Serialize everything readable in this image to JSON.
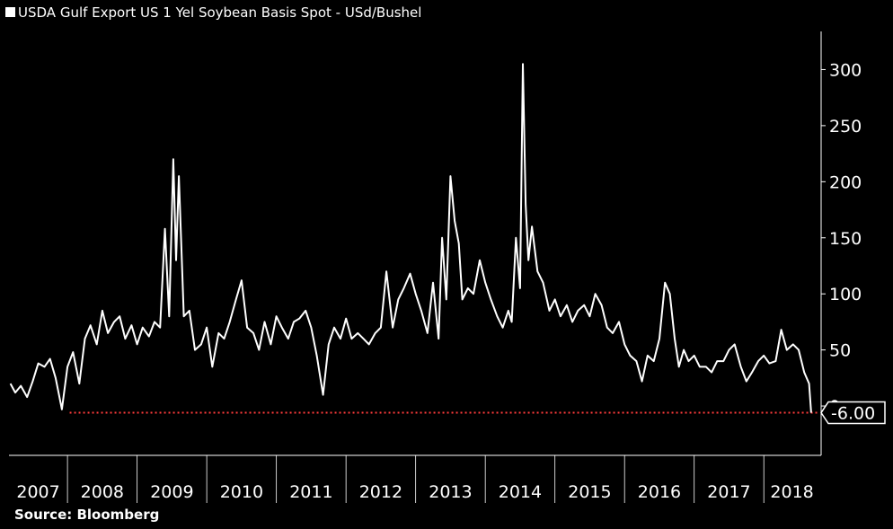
{
  "chart_data": {
    "type": "line",
    "title": "USDA Gulf Export US 1 Yel Soybean Basis Spot - USd/Bushel",
    "source": "Source: Bloomberg",
    "series": [
      {
        "name": "USDA Gulf Export US 1 Yel Soybean Basis Spot - USd/Bushel",
        "color": "#ffffff",
        "x": [
          2007.18,
          2007.25,
          2007.33,
          2007.42,
          2007.5,
          2007.58,
          2007.67,
          2007.75,
          2007.83,
          2007.92,
          2008.0,
          2008.08,
          2008.17,
          2008.25,
          2008.33,
          2008.42,
          2008.5,
          2008.58,
          2008.67,
          2008.75,
          2008.83,
          2008.92,
          2009.0,
          2009.08,
          2009.17,
          2009.25,
          2009.33,
          2009.4,
          2009.46,
          2009.52,
          2009.56,
          2009.6,
          2009.67,
          2009.75,
          2009.83,
          2009.92,
          2010.0,
          2010.08,
          2010.17,
          2010.25,
          2010.33,
          2010.42,
          2010.5,
          2010.58,
          2010.67,
          2010.75,
          2010.83,
          2010.92,
          2011.0,
          2011.08,
          2011.17,
          2011.25,
          2011.33,
          2011.42,
          2011.5,
          2011.58,
          2011.67,
          2011.75,
          2011.83,
          2011.92,
          2012.0,
          2012.08,
          2012.17,
          2012.25,
          2012.33,
          2012.42,
          2012.5,
          2012.58,
          2012.67,
          2012.75,
          2012.83,
          2012.92,
          2013.0,
          2013.08,
          2013.17,
          2013.25,
          2013.33,
          2013.38,
          2013.44,
          2013.5,
          2013.56,
          2013.62,
          2013.67,
          2013.75,
          2013.83,
          2013.92,
          2014.0,
          2014.08,
          2014.17,
          2014.25,
          2014.33,
          2014.38,
          2014.44,
          2014.5,
          2014.54,
          2014.58,
          2014.62,
          2014.67,
          2014.75,
          2014.83,
          2014.92,
          2015.0,
          2015.08,
          2015.17,
          2015.25,
          2015.33,
          2015.42,
          2015.5,
          2015.58,
          2015.67,
          2015.75,
          2015.83,
          2015.92,
          2016.0,
          2016.08,
          2016.17,
          2016.25,
          2016.33,
          2016.42,
          2016.5,
          2016.58,
          2016.65,
          2016.72,
          2016.78,
          2016.85,
          2016.92,
          2017.0,
          2017.08,
          2017.17,
          2017.25,
          2017.33,
          2017.42,
          2017.5,
          2017.58,
          2017.67,
          2017.75,
          2017.83,
          2017.92,
          2018.0,
          2018.08,
          2018.17,
          2018.25,
          2018.33,
          2018.42,
          2018.5,
          2018.58,
          2018.65,
          2018.68
        ],
        "values": [
          20,
          12,
          18,
          8,
          22,
          38,
          35,
          42,
          25,
          -3,
          35,
          48,
          20,
          60,
          72,
          55,
          85,
          65,
          75,
          80,
          60,
          72,
          55,
          70,
          62,
          75,
          70,
          158,
          80,
          220,
          130,
          205,
          80,
          85,
          50,
          55,
          70,
          35,
          65,
          60,
          75,
          95,
          112,
          70,
          65,
          50,
          75,
          55,
          80,
          70,
          60,
          75,
          78,
          85,
          70,
          45,
          10,
          55,
          70,
          60,
          78,
          60,
          65,
          60,
          55,
          65,
          70,
          120,
          70,
          95,
          105,
          118,
          100,
          85,
          65,
          110,
          60,
          150,
          95,
          205,
          165,
          145,
          95,
          105,
          100,
          130,
          110,
          95,
          80,
          70,
          85,
          75,
          150,
          105,
          305,
          180,
          130,
          160,
          120,
          110,
          85,
          95,
          80,
          90,
          75,
          85,
          90,
          80,
          100,
          90,
          70,
          65,
          75,
          55,
          45,
          40,
          22,
          45,
          40,
          60,
          110,
          100,
          60,
          35,
          50,
          40,
          45,
          35,
          35,
          30,
          40,
          40,
          50,
          55,
          35,
          22,
          30,
          40,
          45,
          38,
          40,
          68,
          50,
          55,
          50,
          30,
          20,
          -6
        ]
      }
    ],
    "last_value": {
      "value": -6,
      "label": "-6.00",
      "color": "#ff3b3b"
    },
    "xlim": [
      2007.16,
      2018.81
    ],
    "xticks": [
      2007,
      2008,
      2009,
      2010,
      2011,
      2012,
      2013,
      2014,
      2015,
      2016,
      2017,
      2018
    ],
    "ylim": [
      -44,
      334
    ],
    "yticks": [
      0,
      50,
      100,
      150,
      200,
      250,
      300
    ]
  }
}
